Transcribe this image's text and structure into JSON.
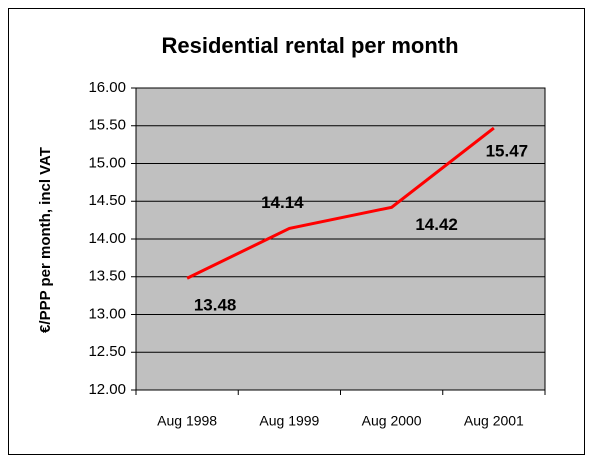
{
  "chart_data": {
    "type": "line",
    "title": "Residential rental per month",
    "y_label": "€/PPP per month, incl VAT",
    "categories": [
      "Aug 1998",
      "Aug 1999",
      "Aug 2000",
      "Aug 2001"
    ],
    "series": [
      {
        "name": "Residential rental",
        "color": "#ff0000",
        "values": [
          13.48,
          14.14,
          14.42,
          15.47
        ]
      }
    ],
    "ylim": [
      12,
      16
    ],
    "yticks": [
      {
        "value": 12,
        "label": "12.00"
      },
      {
        "value": 12.5,
        "label": "12.50"
      },
      {
        "value": 13,
        "label": "13.00"
      },
      {
        "value": 13.5,
        "label": "13.50"
      },
      {
        "value": 14,
        "label": "14.00"
      },
      {
        "value": 14.5,
        "label": "14.50"
      },
      {
        "value": 15,
        "label": "15.00"
      },
      {
        "value": 15.5,
        "label": "15.50"
      },
      {
        "value": 16,
        "label": "16.00"
      }
    ],
    "grid": true,
    "plot_background": "#c0c0c0"
  }
}
